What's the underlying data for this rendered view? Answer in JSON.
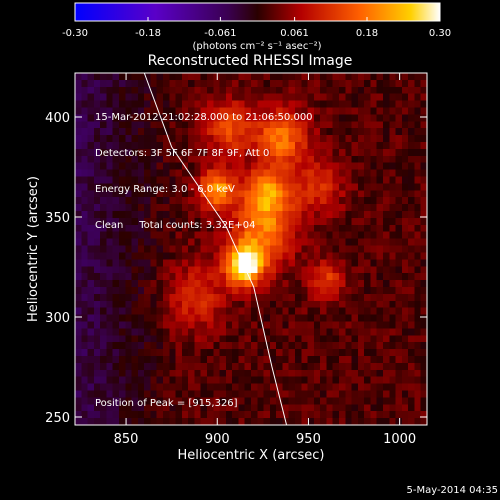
{
  "colorbar": {
    "ticks": [
      "-0.30",
      "-0.18",
      "-0.061",
      "0.061",
      "0.18",
      "0.30"
    ],
    "range": [
      -0.3,
      0.3
    ],
    "unit_label": "(photons cm⁻² s⁻¹ asec⁻²)"
  },
  "chart_data": {
    "type": "heatmap",
    "title": "Reconstructed RHESSI Image",
    "xlabel": "Heliocentric X (arcsec)",
    "ylabel": "Heliocentric Y (arcsec)",
    "xlim": [
      822,
      1015
    ],
    "ylim": [
      246,
      422
    ],
    "xticks": [
      850,
      900,
      950,
      1000
    ],
    "yticks": [
      250,
      300,
      350,
      400
    ],
    "annotations": [
      "15-Mar-2012 21:02:28.000 to 21:06:50.000",
      "Detectors: 3F 5F 6F 7F 8F 9F, Att 0",
      "Energy Range: 3.0 - 6.0 keV",
      "Clean     Total counts: 3.32E+04"
    ],
    "peak_label": "Position of Peak = [915,326]",
    "peak": [
      915,
      326
    ],
    "sources": [
      {
        "x": 915,
        "y": 326,
        "amp": 0.3,
        "sigma": 7
      },
      {
        "x": 900,
        "y": 364,
        "amp": 0.19,
        "sigma": 7
      },
      {
        "x": 928,
        "y": 362,
        "amp": 0.17,
        "sigma": 9
      },
      {
        "x": 935,
        "y": 390,
        "amp": 0.16,
        "sigma": 10
      },
      {
        "x": 906,
        "y": 395,
        "amp": 0.13,
        "sigma": 9
      },
      {
        "x": 925,
        "y": 342,
        "amp": 0.15,
        "sigma": 12
      },
      {
        "x": 960,
        "y": 318,
        "amp": 0.11,
        "sigma": 7
      },
      {
        "x": 955,
        "y": 365,
        "amp": 0.09,
        "sigma": 10
      },
      {
        "x": 888,
        "y": 310,
        "amp": 0.09,
        "sigma": 12
      }
    ],
    "limb_curve": [
      [
        860,
        422
      ],
      [
        875,
        385
      ],
      [
        890,
        365
      ],
      [
        905,
        345
      ],
      [
        920,
        315
      ],
      [
        930,
        275
      ],
      [
        938,
        246
      ]
    ]
  },
  "footer": {
    "date": "5-May-2014 04:35"
  },
  "colors": {
    "text": "#ffffff",
    "background": "#000000"
  }
}
